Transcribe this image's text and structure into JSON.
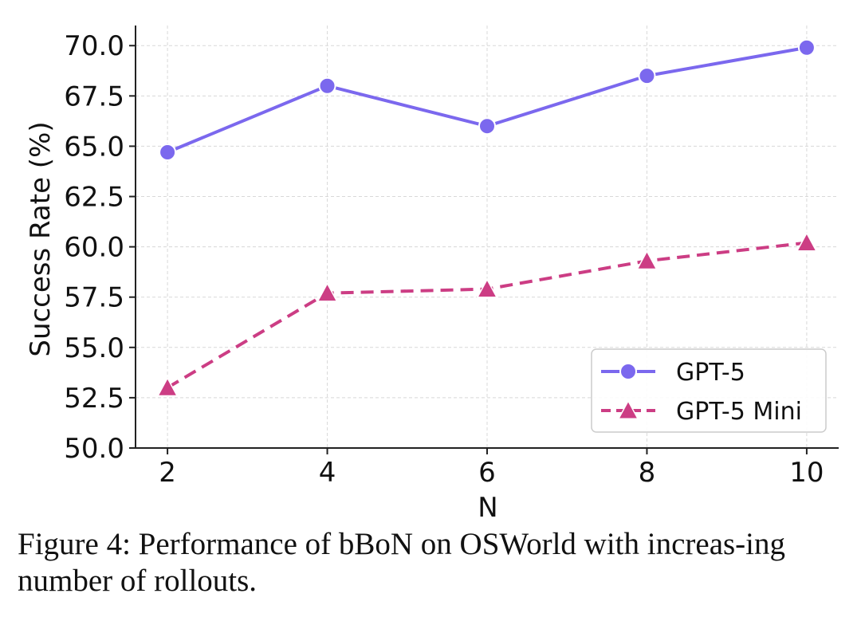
{
  "chart_data": {
    "type": "line",
    "x": [
      2,
      4,
      6,
      8,
      10
    ],
    "xticks": [
      "2",
      "4",
      "6",
      "8",
      "10"
    ],
    "xlabel": "N",
    "ylabel": "Success Rate (%)",
    "ylim": [
      50.0,
      71.0
    ],
    "yticks": [
      "50.0",
      "52.5",
      "55.0",
      "57.5",
      "60.0",
      "62.5",
      "65.0",
      "67.5",
      "70.0"
    ],
    "grid": true,
    "legend_position": "bottom-right",
    "series": [
      {
        "name": "GPT-5",
        "values": [
          64.7,
          68.0,
          66.0,
          68.5,
          69.9
        ],
        "color": "#7b68ee",
        "marker": "circle",
        "linestyle": "solid"
      },
      {
        "name": "GPT-5 Mini",
        "values": [
          53.0,
          57.7,
          57.9,
          59.3,
          60.2
        ],
        "color": "#cc3d84",
        "marker": "triangle",
        "linestyle": "dashed"
      }
    ]
  },
  "caption": {
    "text": "Figure 4: Performance of bBoN on OSWorld with increas-ing number of rollouts."
  }
}
